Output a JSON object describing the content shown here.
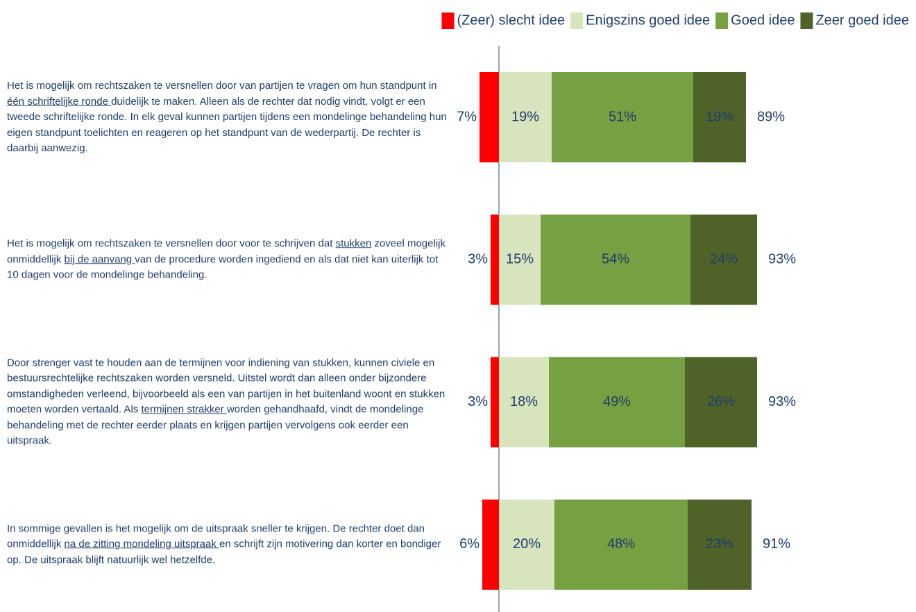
{
  "chart_data": {
    "type": "diverging-bar",
    "categories": [
      [
        {
          "text": "Het is mogelijk om rechtszaken te versnellen door van partijen te vragen om hun standpunt in ",
          "underline": false
        },
        {
          "text": "één schriftelijke ronde ",
          "underline": true
        },
        {
          "text": "duidelijk te maken. Alleen als de rechter dat nodig vindt, volgt er een tweede schriftelijke ronde. In elk geval kunnen partijen tijdens een mondelinge behandeling hun eigen standpunt toelichten en reageren op het standpunt van de wederpartij. De rechter is daarbij aanwezig.",
          "underline": false
        }
      ],
      [
        {
          "text": "Het is mogelijk om rechtszaken te versnellen door voor te schrijven dat ",
          "underline": false
        },
        {
          "text": "stukken",
          "underline": true
        },
        {
          "text": " zoveel mogelijk onmiddellijk ",
          "underline": false
        },
        {
          "text": "bij de aanvang ",
          "underline": true
        },
        {
          "text": "van de procedure worden ingediend en als dat niet kan uiterlijk tot 10 dagen voor de mondelinge behandeling.",
          "underline": false
        }
      ],
      [
        {
          "text": "Door strenger vast te houden aan de termijnen voor indiening van stukken, kunnen civiele en bestuursrechtelijke rechtszaken worden versneld. Uitstel wordt dan alleen onder bijzondere omstandigheden verleend, bijvoorbeeld als een van partijen in het buitenland woont en stukken moeten worden vertaald. Als ",
          "underline": false
        },
        {
          "text": "termijnen strakker ",
          "underline": true
        },
        {
          "text": "worden gehandhaafd, vindt de mondelinge behandeling met de rechter eerder plaats en krijgen partijen vervolgens ook eerder een uitspraak.",
          "underline": false
        }
      ],
      [
        {
          "text": "In sommige gevallen is het mogelijk om de uitspraak sneller te krijgen. De rechter doet dan onmiddellijk ",
          "underline": false
        },
        {
          "text": "na de zitting mondeling uitspraak ",
          "underline": true
        },
        {
          "text": "en schrijft zijn motivering dan korter en bondiger op. De uitspraak blijft natuurlijk wel hetzelfde.",
          "underline": false
        }
      ]
    ],
    "series": [
      {
        "name": "(Zeer) slecht idee",
        "color": "#ff0000",
        "side": "left",
        "label_color": "#1f3d6b",
        "values": [
          7,
          3,
          3,
          6
        ],
        "value_labels": [
          "7%",
          "3%",
          "3%",
          "6%"
        ]
      },
      {
        "name": "Enigszins goed idee",
        "color": "#d7e4bd",
        "label_color": "#1f3d6b",
        "values": [
          19,
          15,
          18,
          20
        ],
        "value_labels": [
          "19%",
          "15%",
          "18%",
          "20%"
        ]
      },
      {
        "name": "Goed idee",
        "color": "#77a042",
        "label_color": "#ffffff",
        "values": [
          51,
          54,
          49,
          48
        ],
        "value_labels": [
          "51%",
          "54%",
          "49%",
          "48%"
        ]
      },
      {
        "name": "Zeer goed idee",
        "color": "#4f6228",
        "label_color": "#ffffff",
        "values": [
          19,
          24,
          26,
          23
        ],
        "value_labels": [
          "19%",
          "24%",
          "26%",
          "23%"
        ]
      }
    ],
    "totals": [
      89,
      93,
      93,
      91
    ],
    "total_labels": [
      "89%",
      "93%",
      "93%",
      "91%"
    ],
    "xlim": [
      -10,
      100
    ],
    "legend": "top-right"
  }
}
